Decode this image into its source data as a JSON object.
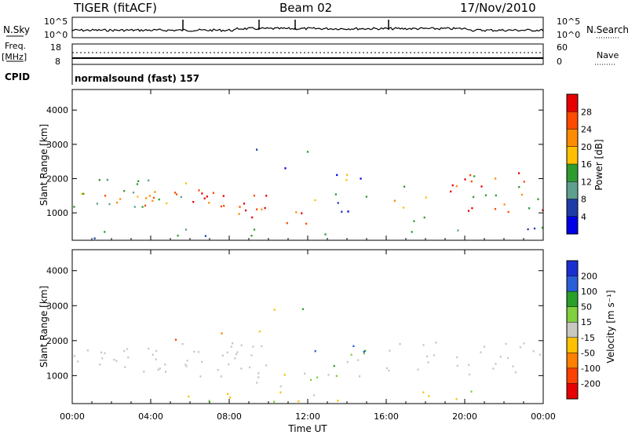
{
  "header": {
    "station": "TIGER (fitACF)",
    "beam": "Beam 02",
    "date": "17/Nov/2010"
  },
  "params": {
    "nsky_label": "N.Sky",
    "nsky_ticks": [
      "10^5",
      "10^0"
    ],
    "nsearch_label": "N.Search",
    "nsearch_ticks": [
      "10^5",
      "10^0"
    ],
    "freq_label_1": "Freq.",
    "freq_label_2": "[MHz]",
    "freq_ticks": [
      "18",
      "8"
    ],
    "nave_label": "Nave",
    "nave_ticks": [
      "60",
      "0"
    ],
    "cpid_label": "CPID",
    "cpid_text": "normalsound (fast) 157"
  },
  "chart_data": [
    {
      "type": "heatmap",
      "name": "power",
      "ylabel": "Slant Range [km]",
      "yticks": [
        "4000",
        "3000",
        "2000",
        "1000"
      ],
      "ylim": [
        200,
        4600
      ],
      "xlabel": "",
      "xticks": [
        "00:00",
        "04:00",
        "08:00",
        "12:00",
        "16:00",
        "20:00",
        "00:00"
      ],
      "colorbar": {
        "label": "Power [dB]",
        "ticks": [
          "28",
          "24",
          "20",
          "16",
          "12",
          "8",
          "4"
        ],
        "colors": [
          "#e60000",
          "#ff4a00",
          "#ff8c00",
          "#ffc000",
          "#2e9b2e",
          "#5f9f8f",
          "#1e3ca8",
          "#0000e6"
        ]
      }
    },
    {
      "type": "heatmap",
      "name": "velocity",
      "ylabel": "Slant Range [km]",
      "yticks": [
        "4000",
        "3000",
        "2000",
        "1000"
      ],
      "ylim": [
        200,
        4600
      ],
      "xlabel": "Time UT",
      "xticks": [
        "00:00",
        "04:00",
        "08:00",
        "12:00",
        "16:00",
        "20:00",
        "00:00"
      ],
      "colorbar": {
        "label": "Velocity [m s⁻¹]",
        "ticks": [
          "200",
          "100",
          "50",
          "15",
          "-15",
          "-50",
          "-100",
          "-200"
        ],
        "colors": [
          "#1a2fd1",
          "#2a5fd8",
          "#2a9f2a",
          "#80d040",
          "#c8c8c0",
          "#ffc000",
          "#ff8000",
          "#ff4000",
          "#e60000"
        ]
      }
    }
  ]
}
